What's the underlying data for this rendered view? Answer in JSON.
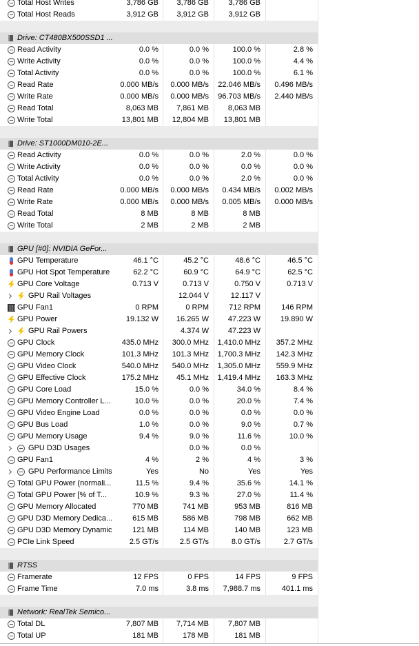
{
  "leading_rows": [
    {
      "label": "Total Host Writes",
      "values": [
        "3,786 GB",
        "3,786 GB",
        "3,786 GB",
        null
      ]
    },
    {
      "label": "Total Host Reads",
      "values": [
        "3,912 GB",
        "3,912 GB",
        "3,912 GB",
        null
      ]
    }
  ],
  "sections": [
    {
      "title": "Drive: CT480BX500SSD1 ...",
      "rows": [
        {
          "label": "Read Activity",
          "values": [
            "0.0 %",
            "0.0 %",
            "100.0 %",
            "2.8 %"
          ]
        },
        {
          "label": "Write Activity",
          "values": [
            "0.0 %",
            "0.0 %",
            "100.0 %",
            "4.4 %"
          ]
        },
        {
          "label": "Total Activity",
          "values": [
            "0.0 %",
            "0.0 %",
            "100.0 %",
            "6.1 %"
          ]
        },
        {
          "label": "Read Rate",
          "values": [
            "0.000 MB/s",
            "0.000 MB/s",
            "22.046 MB/s",
            "0.496 MB/s"
          ]
        },
        {
          "label": "Write Rate",
          "values": [
            "0.000 MB/s",
            "0.000 MB/s",
            "96.703 MB/s",
            "2.440 MB/s"
          ]
        },
        {
          "label": "Read Total",
          "values": [
            "8,063 MB",
            "7,861 MB",
            "8,063 MB",
            null
          ]
        },
        {
          "label": "Write Total",
          "values": [
            "13,801 MB",
            "12,804 MB",
            "13,801 MB",
            null
          ]
        }
      ]
    },
    {
      "title": "Drive: ST1000DM010-2E...",
      "rows": [
        {
          "label": "Read Activity",
          "values": [
            "0.0 %",
            "0.0 %",
            "2.0 %",
            "0.0 %"
          ]
        },
        {
          "label": "Write Activity",
          "values": [
            "0.0 %",
            "0.0 %",
            "0.0 %",
            "0.0 %"
          ]
        },
        {
          "label": "Total Activity",
          "values": [
            "0.0 %",
            "0.0 %",
            "2.0 %",
            "0.0 %"
          ]
        },
        {
          "label": "Read Rate",
          "values": [
            "0.000 MB/s",
            "0.000 MB/s",
            "0.434 MB/s",
            "0.002 MB/s"
          ]
        },
        {
          "label": "Write Rate",
          "values": [
            "0.000 MB/s",
            "0.000 MB/s",
            "0.005 MB/s",
            "0.000 MB/s"
          ]
        },
        {
          "label": "Read Total",
          "values": [
            "8 MB",
            "8 MB",
            "8 MB",
            null
          ]
        },
        {
          "label": "Write Total",
          "values": [
            "2 MB",
            "2 MB",
            "2 MB",
            null
          ]
        }
      ]
    },
    {
      "title": "GPU [#0]: NVIDIA GeFor...",
      "rows": [
        {
          "label": "GPU Temperature",
          "values": [
            "46.1 °C",
            "45.2 °C",
            "48.6 °C",
            "46.5 °C"
          ]
        },
        {
          "label": "GPU Hot Spot Temperature",
          "values": [
            "62.2 °C",
            "60.9 °C",
            "64.9 °C",
            "62.5 °C"
          ]
        },
        {
          "label": "GPU Core Voltage",
          "values": [
            "0.713 V",
            "0.713 V",
            "0.750 V",
            "0.713 V"
          ]
        },
        {
          "label": "GPU Rail Voltages",
          "values": [
            null,
            "12.044 V",
            "12.117 V",
            null
          ]
        },
        {
          "label": "GPU Fan1",
          "values": [
            "0 RPM",
            "0 RPM",
            "712 RPM",
            "146 RPM"
          ]
        },
        {
          "label": "GPU Power",
          "values": [
            "19.132 W",
            "16.265 W",
            "47.223 W",
            "19.890 W"
          ]
        },
        {
          "label": "GPU Rail Powers",
          "values": [
            null,
            "4.374 W",
            "47.223 W",
            null
          ]
        },
        {
          "label": "GPU Clock",
          "values": [
            "435.0 MHz",
            "300.0 MHz",
            "1,410.0 MHz",
            "357.2 MHz"
          ]
        },
        {
          "label": "GPU Memory Clock",
          "values": [
            "101.3 MHz",
            "101.3 MHz",
            "1,700.3 MHz",
            "142.3 MHz"
          ]
        },
        {
          "label": "GPU Video Clock",
          "values": [
            "540.0 MHz",
            "540.0 MHz",
            "1,305.0 MHz",
            "559.9 MHz"
          ]
        },
        {
          "label": "GPU Effective Clock",
          "values": [
            "175.2 MHz",
            "45.1 MHz",
            "1,419.4 MHz",
            "163.3 MHz"
          ]
        },
        {
          "label": "GPU Core Load",
          "values": [
            "15.0 %",
            "0.0 %",
            "34.0 %",
            "8.4 %"
          ]
        },
        {
          "label": "GPU Memory Controller L...",
          "values": [
            "10.0 %",
            "0.0 %",
            "20.0 %",
            "7.4 %"
          ]
        },
        {
          "label": "GPU Video Engine Load",
          "values": [
            "0.0 %",
            "0.0 %",
            "0.0 %",
            "0.0 %"
          ]
        },
        {
          "label": "GPU Bus Load",
          "values": [
            "1.0 %",
            "0.0 %",
            "9.0 %",
            "0.7 %"
          ]
        },
        {
          "label": "GPU Memory Usage",
          "values": [
            "9.4 %",
            "9.0 %",
            "11.6 %",
            "10.0 %"
          ]
        },
        {
          "label": "GPU D3D Usages",
          "values": [
            null,
            "0.0 %",
            "0.0 %",
            null
          ]
        },
        {
          "label": "GPU Fan1",
          "values": [
            "4 %",
            "2 %",
            "4 %",
            "3 %"
          ]
        },
        {
          "label": "GPU Performance Limits",
          "values": [
            "Yes",
            "No",
            "Yes",
            "Yes"
          ]
        },
        {
          "label": "Total GPU Power (normali...",
          "values": [
            "11.5 %",
            "9.4 %",
            "35.6 %",
            "14.1 %"
          ]
        },
        {
          "label": "Total GPU Power [% of T...",
          "values": [
            "10.9 %",
            "9.3 %",
            "27.0 %",
            "11.4 %"
          ]
        },
        {
          "label": "GPU Memory Allocated",
          "values": [
            "770 MB",
            "741 MB",
            "953 MB",
            "816 MB"
          ]
        },
        {
          "label": "GPU D3D Memory Dedica...",
          "values": [
            "615 MB",
            "586 MB",
            "798 MB",
            "662 MB"
          ]
        },
        {
          "label": "GPU D3D Memory Dynamic",
          "values": [
            "121 MB",
            "114 MB",
            "140 MB",
            "123 MB"
          ]
        },
        {
          "label": "PCIe Link Speed",
          "values": [
            "2.5 GT/s",
            "2.5 GT/s",
            "8.0 GT/s",
            "2.7 GT/s"
          ]
        }
      ]
    },
    {
      "title": "RTSS",
      "rows": [
        {
          "label": "Framerate",
          "values": [
            "12 FPS",
            "0 FPS",
            "14 FPS",
            "9 FPS"
          ]
        },
        {
          "label": "Frame Time",
          "values": [
            "7.0 ms",
            "3.8 ms",
            "7,988.7 ms",
            "401.1 ms"
          ]
        }
      ]
    },
    {
      "title": "Network: RealTek Semico...",
      "rows": [
        {
          "label": "Total DL",
          "values": [
            "7,807 MB",
            "7,714 MB",
            "7,807 MB",
            null
          ]
        },
        {
          "label": "Total UP",
          "values": [
            "181 MB",
            "178 MB",
            "181 MB",
            null
          ]
        }
      ]
    }
  ]
}
